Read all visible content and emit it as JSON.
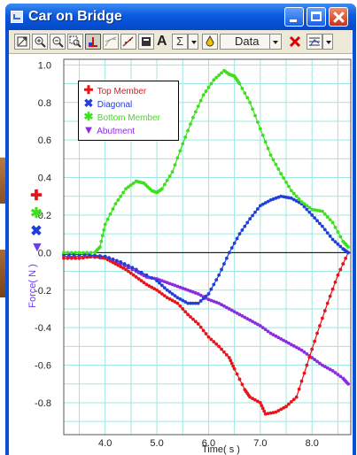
{
  "window": {
    "title": "Car on Bridge"
  },
  "toolbar": {
    "icons": [
      "autoscale-icon",
      "zoom-in-icon",
      "zoom-out-icon",
      "zoom-box-icon",
      "examine-icon",
      "tangent-icon",
      "curve-fit-icon",
      "statistics-icon",
      "text-annotation-icon",
      "sigma-icon",
      "data-dropdown-icon",
      "delete-icon",
      "graph-options-icon"
    ],
    "annotation_label": "A",
    "sigma_label": "Σ",
    "data_label": "Data"
  },
  "colors": {
    "top_member": "#e8141a",
    "diagonal": "#1f3fd8",
    "bottom_member": "#3ce01c",
    "abutment": "#8a2be2",
    "grid": "#9de8e0"
  },
  "chart_data": {
    "type": "line",
    "title": "",
    "xlabel": "Time( s )",
    "ylabel": "Force( N )",
    "xlim": [
      3.2,
      8.75
    ],
    "ylim": [
      -0.97,
      1.03
    ],
    "x_ticks": [
      "4.0",
      "5.0",
      "6.0",
      "7.0",
      "8.0"
    ],
    "y_ticks": [
      "1.0",
      "0.8",
      "0.6",
      "0.4",
      "0.2",
      "0.0",
      "-0.2",
      "-0.4",
      "-0.6",
      "-0.8"
    ],
    "grid": true,
    "legend_placement": "top-left",
    "series": [
      {
        "name": "Top Member",
        "symbol": "✚",
        "color": "#e8141a",
        "x": [
          3.2,
          3.5,
          3.8,
          4.0,
          4.2,
          4.4,
          4.6,
          4.8,
          5.0,
          5.2,
          5.4,
          5.6,
          5.8,
          6.0,
          6.2,
          6.4,
          6.5,
          6.7,
          6.8,
          7.0,
          7.1,
          7.3,
          7.5,
          7.7,
          7.9,
          8.1,
          8.3,
          8.5,
          8.7
        ],
        "values": [
          -0.03,
          -0.03,
          -0.02,
          -0.03,
          -0.06,
          -0.09,
          -0.13,
          -0.17,
          -0.2,
          -0.24,
          -0.27,
          -0.33,
          -0.38,
          -0.45,
          -0.5,
          -0.56,
          -0.62,
          -0.73,
          -0.77,
          -0.8,
          -0.86,
          -0.85,
          -0.82,
          -0.77,
          -0.6,
          -0.43,
          -0.27,
          -0.12,
          0.0
        ]
      },
      {
        "name": "Diagonal",
        "symbol": "✖",
        "color": "#1f3fd8",
        "x": [
          3.2,
          3.6,
          4.0,
          4.3,
          4.6,
          5.0,
          5.2,
          5.4,
          5.6,
          5.8,
          6.0,
          6.2,
          6.4,
          6.6,
          6.8,
          7.0,
          7.2,
          7.4,
          7.6,
          7.8,
          8.0,
          8.2,
          8.4,
          8.6,
          8.7
        ],
        "values": [
          -0.01,
          -0.01,
          -0.02,
          -0.05,
          -0.09,
          -0.15,
          -0.2,
          -0.24,
          -0.27,
          -0.27,
          -0.22,
          -0.12,
          0.0,
          0.1,
          0.18,
          0.25,
          0.28,
          0.3,
          0.29,
          0.26,
          0.2,
          0.14,
          0.07,
          0.02,
          0.0
        ]
      },
      {
        "name": "Bottom Member",
        "symbol": "✱",
        "color": "#3ce01c",
        "x": [
          3.2,
          3.5,
          3.8,
          3.9,
          4.0,
          4.2,
          4.4,
          4.6,
          4.75,
          4.9,
          5.0,
          5.1,
          5.3,
          5.5,
          5.7,
          5.9,
          6.1,
          6.3,
          6.4,
          6.5,
          6.6,
          6.8,
          7.0,
          7.2,
          7.4,
          7.6,
          7.8,
          8.0,
          8.2,
          8.4,
          8.6,
          8.7
        ],
        "values": [
          0.0,
          0.0,
          0.0,
          0.03,
          0.15,
          0.26,
          0.34,
          0.38,
          0.37,
          0.33,
          0.32,
          0.34,
          0.43,
          0.58,
          0.72,
          0.84,
          0.92,
          0.97,
          0.95,
          0.94,
          0.9,
          0.8,
          0.66,
          0.52,
          0.42,
          0.33,
          0.27,
          0.23,
          0.22,
          0.16,
          0.06,
          0.03
        ]
      },
      {
        "name": "Abutment",
        "symbol": "▼",
        "color": "#8a2be2",
        "x": [
          3.2,
          3.6,
          4.0,
          4.3,
          4.6,
          4.8,
          5.0,
          5.2,
          5.4,
          5.6,
          5.8,
          6.0,
          6.2,
          6.4,
          6.6,
          6.8,
          7.0,
          7.2,
          7.4,
          7.6,
          7.8,
          8.0,
          8.2,
          8.4,
          8.6,
          8.7
        ],
        "values": [
          -0.02,
          -0.02,
          -0.03,
          -0.06,
          -0.1,
          -0.13,
          -0.14,
          -0.16,
          -0.18,
          -0.2,
          -0.22,
          -0.25,
          -0.27,
          -0.3,
          -0.33,
          -0.36,
          -0.39,
          -0.43,
          -0.46,
          -0.49,
          -0.52,
          -0.56,
          -0.6,
          -0.63,
          -0.67,
          -0.7
        ]
      }
    ]
  }
}
